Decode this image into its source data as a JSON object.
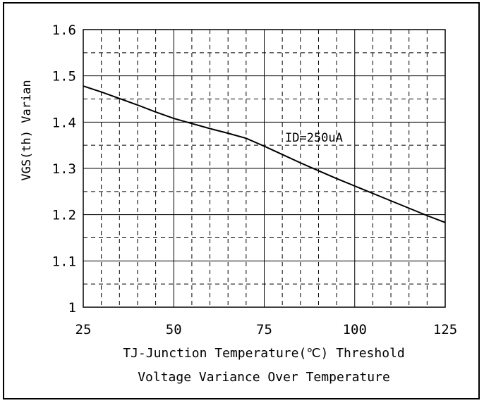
{
  "chart_data": {
    "type": "line",
    "title": "",
    "xlabel": "TJ-Junction Temperature(℃) Threshold",
    "caption": "Voltage Variance Over Temperature",
    "ylabel": "VGS(th) Varian",
    "annotation": "ID=250uA",
    "xlim": [
      25,
      125
    ],
    "ylim": [
      1.0,
      1.6
    ],
    "x_ticks": [
      "25",
      "50",
      "75",
      "100",
      "125"
    ],
    "y_ticks": [
      "1",
      "1.1",
      "1.2",
      "1.3",
      "1.4",
      "1.5",
      "1.6"
    ],
    "x_minor_step": 5,
    "y_minor_step": 0.05,
    "grid": true,
    "series": [
      {
        "x": [
          25,
          30,
          35,
          40,
          45,
          50,
          55,
          60,
          65,
          70,
          75,
          80,
          85,
          90,
          95,
          100,
          105,
          110,
          115,
          120,
          125
        ],
        "y": [
          1.478,
          1.465,
          1.451,
          1.437,
          1.422,
          1.408,
          1.397,
          1.386,
          1.376,
          1.365,
          1.348,
          1.33,
          1.312,
          1.295,
          1.278,
          1.262,
          1.246,
          1.23,
          1.214,
          1.198,
          1.183
        ]
      }
    ],
    "colors": {
      "line": "#000000",
      "grid_major": "#000000",
      "grid_minor": "#000000"
    }
  }
}
